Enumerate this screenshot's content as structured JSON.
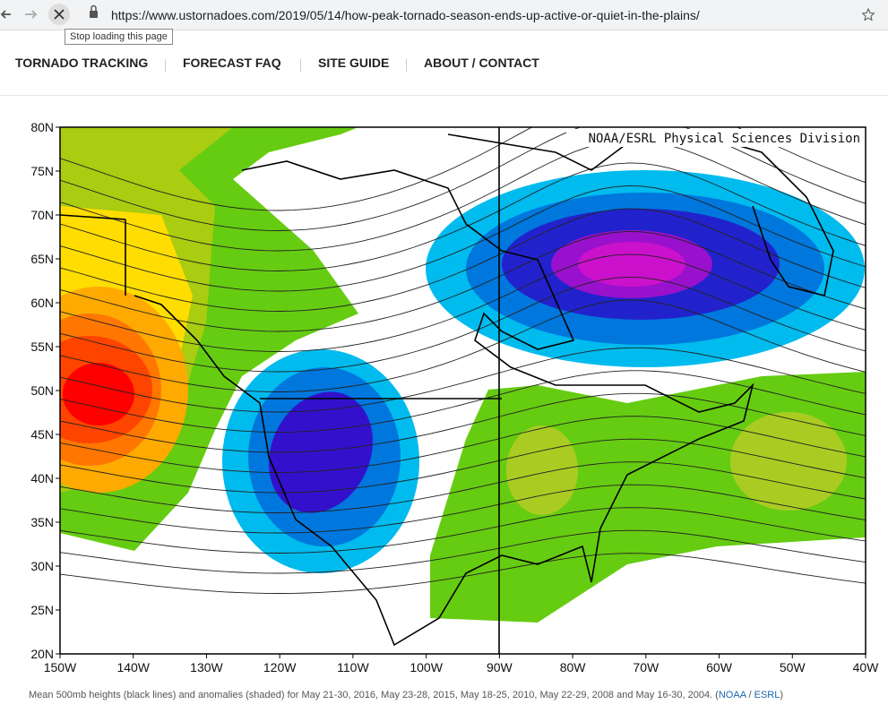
{
  "browser": {
    "url": "https://www.ustornadoes.com/2019/05/14/how-peak-tornado-season-ends-up-active-or-quiet-in-the-plains/",
    "tooltip": "Stop loading this page"
  },
  "nav": [
    "TORNADO TRACKING",
    "FORECAST FAQ",
    "SITE GUIDE",
    "ABOUT / CONTACT"
  ],
  "map": {
    "credit": "NOAA/ESRL Physical Sciences Division",
    "lat_labels": [
      "80N",
      "75N",
      "70N",
      "65N",
      "60N",
      "55N",
      "50N",
      "45N",
      "40N",
      "35N",
      "30N",
      "25N",
      "20N"
    ],
    "lon_labels": [
      "150W",
      "140W",
      "130W",
      "120W",
      "110W",
      "100W",
      "90W",
      "80W",
      "70W",
      "60W",
      "50W",
      "40W"
    ]
  },
  "caption": {
    "text": "Mean 500mb heights (black lines) and anomalies (shaded) for May 21-30, 2016, May 23-28, 2015, May 18-25, 2010, May 22-29, 2008 and May 16-30, 2004. (",
    "link1": "NOAA",
    "sep": " / ",
    "link2": "ESRL",
    "end": ")"
  }
}
